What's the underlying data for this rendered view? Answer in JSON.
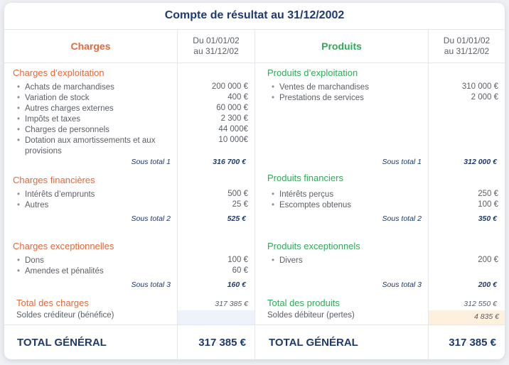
{
  "title": "Compte de résultat au 31/12/2002",
  "headers": {
    "charges": "Charges",
    "produits": "Produits",
    "period_line1": "Du 01/01/02",
    "period_line2": "au 31/12/02"
  },
  "charges": {
    "exploitation": {
      "title": "Charges d’exploitation",
      "items": [
        {
          "label": "Achats de marchandises",
          "amount": "200 000 €"
        },
        {
          "label": "Variation de stock",
          "amount": "400 €"
        },
        {
          "label": "Autres charges externes",
          "amount": "60 000 €"
        },
        {
          "label": "Impôts et taxes",
          "amount": "2 300 €"
        },
        {
          "label": "Charges de personnels",
          "amount": "44 000€"
        },
        {
          "label": "Dotation aux amortissements et aux provisions",
          "amount": "10 000€"
        }
      ],
      "subtotal_label": "Sous total 1",
      "subtotal": "316 700 €"
    },
    "financieres": {
      "title": "Charges financières",
      "items": [
        {
          "label": "Intérêts d’emprunts",
          "amount": "500 €"
        },
        {
          "label": "Autres",
          "amount": "25 €"
        }
      ],
      "subtotal_label": "Sous total 2",
      "subtotal": "525 €"
    },
    "exceptionnelles": {
      "title": "Charges exceptionnelles",
      "items": [
        {
          "label": "Dons",
          "amount": "100 €"
        },
        {
          "label": "Amendes et pénalités",
          "amount": "60 €"
        }
      ],
      "subtotal_label": "Sous total 3",
      "subtotal": "160 €"
    },
    "total_label": "Total des charges",
    "total": "317 385  €",
    "solde_label": "Soldes créditeur (bénéfice)",
    "solde": ""
  },
  "produits": {
    "exploitation": {
      "title": "Produits d’exploitation",
      "items": [
        {
          "label": "Ventes de marchandises",
          "amount": "310 000 €"
        },
        {
          "label": "Prestations de services",
          "amount": "2 000 €"
        }
      ],
      "subtotal_label": "Sous total 1",
      "subtotal": "312 000 €"
    },
    "financiers": {
      "title": "Produits financiers",
      "items": [
        {
          "label": "Intérêts perçus",
          "amount": "250 €"
        },
        {
          "label": "Escomptes obtenus",
          "amount": "100 €"
        }
      ],
      "subtotal_label": "Sous total 2",
      "subtotal": "350 €"
    },
    "exceptionnels": {
      "title": "Produits exceptionnels",
      "items": [
        {
          "label": "Divers",
          "amount": "200 €"
        }
      ],
      "subtotal_label": "Sous total 3",
      "subtotal": "200 €"
    },
    "total_label": "Total des produits",
    "total": "312 550  €",
    "solde_label": "Soldes débiteur (pertes)",
    "solde": "4 835  €"
  },
  "grand_total": {
    "label_left": "TOTAL GÉNÉRAL",
    "value_left": "317 385  €",
    "label_right": "TOTAL GÉNÉRAL",
    "value_right": "317 385  €"
  },
  "colors": {
    "navy": "#1f3a6e",
    "charges": "#e5683a",
    "produits": "#2eaa57",
    "highlight_blue": "#eef2fb",
    "highlight_orange": "#fdf0dc"
  }
}
